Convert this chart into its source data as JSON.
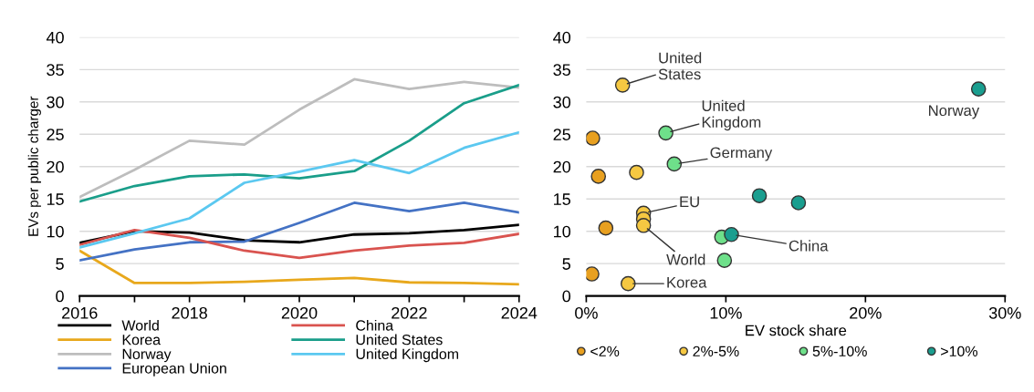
{
  "chart_data": [
    {
      "type": "line",
      "ylabel": "EVs per public charger",
      "x": [
        2016,
        2017,
        2018,
        2019,
        2020,
        2021,
        2022,
        2023,
        2024
      ],
      "xlim": [
        2016,
        2024
      ],
      "xticks": [
        2016,
        {
          "value": 2017,
          "label": null
        },
        2018,
        {
          "value": 2019,
          "label": null
        },
        2020,
        {
          "value": 2021,
          "label": null
        },
        2022,
        {
          "value": 2023,
          "label": null
        },
        2024
      ],
      "ylim": [
        0,
        40
      ],
      "yticks": [
        0,
        5,
        10,
        15,
        20,
        25,
        30,
        35,
        40
      ],
      "grid": "y",
      "legend": "bottom",
      "series": [
        {
          "name": "World",
          "color": "#000000",
          "values": [
            8.2,
            10.0,
            9.8,
            8.6,
            8.3,
            9.5,
            9.7,
            10.2,
            11.0
          ]
        },
        {
          "name": "Korea",
          "color": "#e8a81c",
          "values": [
            7.0,
            2.0,
            2.0,
            2.2,
            2.5,
            2.8,
            2.1,
            2.0,
            1.8
          ]
        },
        {
          "name": "Norway",
          "color": "#bdbdbd",
          "values": [
            15.3,
            19.5,
            24.0,
            23.4,
            28.8,
            33.5,
            32.0,
            33.1,
            32.2
          ]
        },
        {
          "name": "European Union",
          "color": "#4472c4",
          "values": [
            5.5,
            7.2,
            8.3,
            8.4,
            11.3,
            14.4,
            13.1,
            14.4,
            12.9
          ]
        },
        {
          "name": "China",
          "color": "#d9534f",
          "values": [
            7.9,
            10.2,
            9.0,
            7.0,
            5.9,
            7.0,
            7.8,
            8.2,
            9.6
          ]
        },
        {
          "name": "United States",
          "color": "#1a9e8a",
          "values": [
            14.6,
            17.0,
            18.5,
            18.8,
            18.2,
            19.3,
            24.0,
            29.8,
            32.6
          ]
        },
        {
          "name": "United Kingdom",
          "color": "#5bc8f0",
          "values": [
            7.5,
            9.7,
            12.0,
            17.5,
            19.2,
            21.0,
            19.0,
            22.9,
            25.3
          ]
        }
      ]
    },
    {
      "type": "scatter",
      "xlabel": "EV stock share",
      "xlim": [
        0,
        30
      ],
      "xticks": [
        {
          "value": 0,
          "label": "0%"
        },
        {
          "value": 10,
          "label": "10%"
        },
        {
          "value": 20,
          "label": "20%"
        },
        {
          "value": 30,
          "label": "30%"
        }
      ],
      "ylim": [
        0,
        40
      ],
      "yticks": [
        0,
        5,
        10,
        15,
        20,
        25,
        30,
        35,
        40
      ],
      "grid": "y",
      "legend": "bottom",
      "marker": "circle",
      "series": [
        {
          "name": "<2%",
          "color": "#e8a020",
          "x": [
            0.46,
            0.87,
            1.4,
            0.4
          ],
          "values": [
            24.4,
            18.5,
            10.5,
            3.4
          ]
        },
        {
          "name": "2%-5%",
          "color": "#f5c842",
          "x": [
            2.6,
            3.6,
            4.1,
            4.1,
            4.1,
            3.0
          ],
          "values": [
            32.6,
            19.1,
            12.8,
            11.9,
            10.9,
            1.9
          ]
        },
        {
          "name": "5%-10%",
          "color": "#6ee08a",
          "x": [
            5.7,
            6.3,
            9.7,
            9.9
          ],
          "values": [
            25.2,
            20.4,
            9.1,
            5.5
          ]
        },
        {
          "name": ">10%",
          "color": "#1a9e8f",
          "x": [
            28.1,
            12.4,
            15.2,
            10.4
          ],
          "values": [
            32.0,
            15.5,
            14.4,
            9.5
          ]
        }
      ],
      "annotations": [
        {
          "text": "United\nStates",
          "x": 2.6,
          "y": 32.6
        },
        {
          "text": "Norway",
          "x": 28.1,
          "y": 32.0
        },
        {
          "text": "United\nKingdom",
          "x": 5.7,
          "y": 25.2
        },
        {
          "text": "Germany",
          "x": 6.3,
          "y": 20.4
        },
        {
          "text": "EU",
          "x": 4.1,
          "y": 12.8
        },
        {
          "text": "World",
          "x": 4.1,
          "y": 10.9
        },
        {
          "text": "China",
          "x": 10.4,
          "y": 9.5
        },
        {
          "text": "Korea",
          "x": 3.0,
          "y": 1.9
        }
      ]
    }
  ]
}
